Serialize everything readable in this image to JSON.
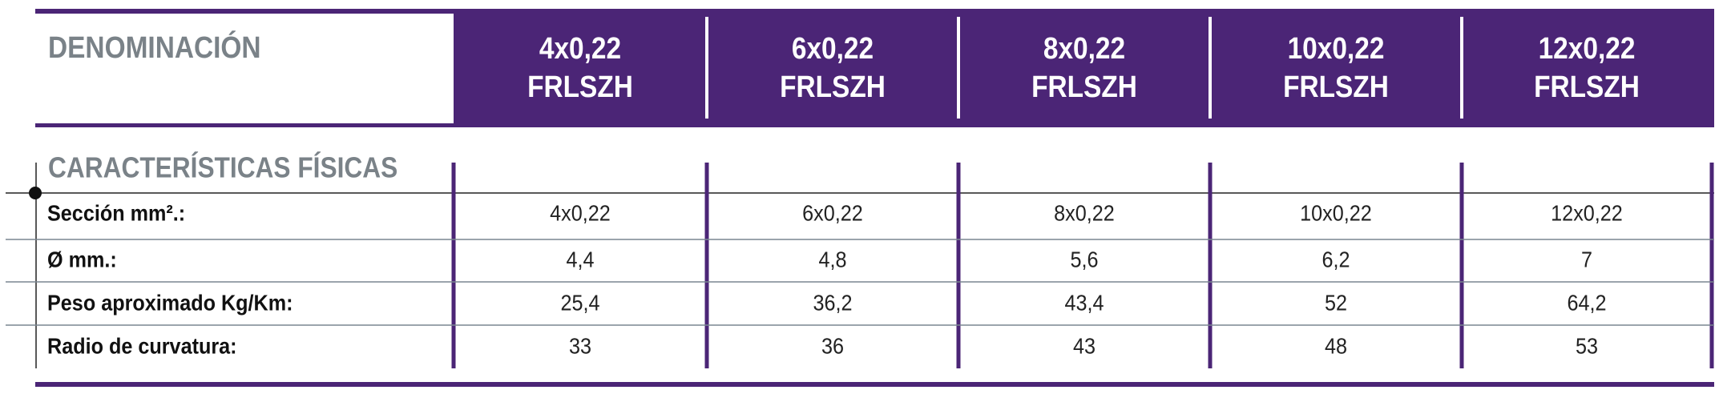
{
  "header": {
    "title": "DENOMINACIÓN",
    "columns": [
      [
        "4x0,22",
        "FRLSZH"
      ],
      [
        "6x0,22",
        "FRLSZH"
      ],
      [
        "8x0,22",
        "FRLSZH"
      ],
      [
        "10x0,22",
        "FRLSZH"
      ],
      [
        "12x0,22",
        "FRLSZH"
      ]
    ]
  },
  "section": {
    "title": "CARACTERÍSTICAS FÍSICAS"
  },
  "table": {
    "rows": [
      [
        "Sección mm².:",
        "4x0,22",
        "6x0,22",
        "8x0,22",
        "10x0,22",
        "12x0,22"
      ],
      [
        "Ø mm.:",
        "4,4",
        "4,8",
        "5,6",
        "6,2",
        "7"
      ],
      [
        "Peso aproximado Kg/Km:",
        "25,4",
        "36,2",
        "43,4",
        "52",
        "64,2"
      ],
      [
        "Radio de curvatura:",
        "33",
        "36",
        "43",
        "48",
        "53"
      ]
    ]
  }
}
